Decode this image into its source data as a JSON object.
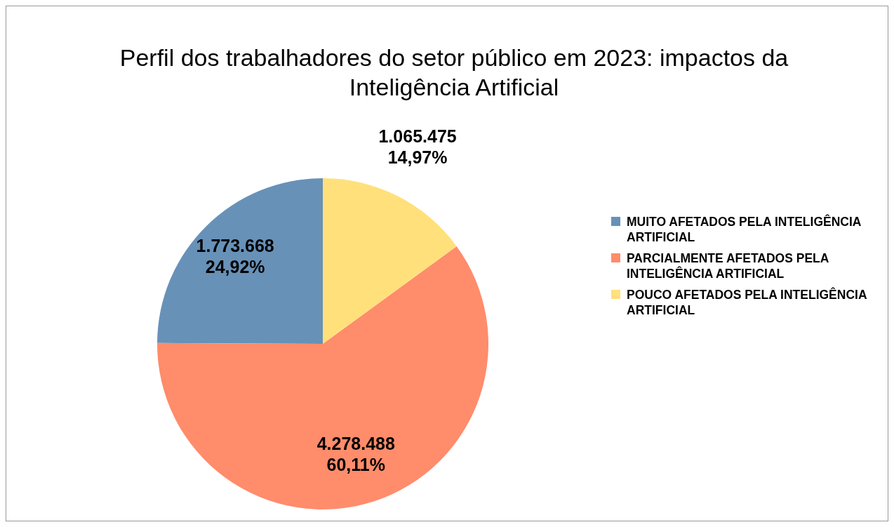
{
  "chart_data": {
    "type": "pie",
    "title": "Perfil dos trabalhadores do setor público em 2023: impactos da Inteligência Artificial",
    "categories": [
      "MUITO AFETADOS PELA INTELIGÊNCIA ARTIFICIAL",
      "PARCIALMENTE AFETADOS PELA INTELIGÊNCIA ARTIFICIAL",
      "POUCO AFETADOS PELA INTELIGÊNCIA ARTIFICIAL"
    ],
    "values": [
      1773668,
      4278488,
      1065475
    ],
    "colors": [
      "#6891b8",
      "#ff8c6b",
      "#ffe07a"
    ],
    "value_labels": [
      "1.773.668\n24,92%",
      "4.278.488\n60,11%",
      "1.065.475\n14,97%"
    ],
    "legend": "right"
  }
}
